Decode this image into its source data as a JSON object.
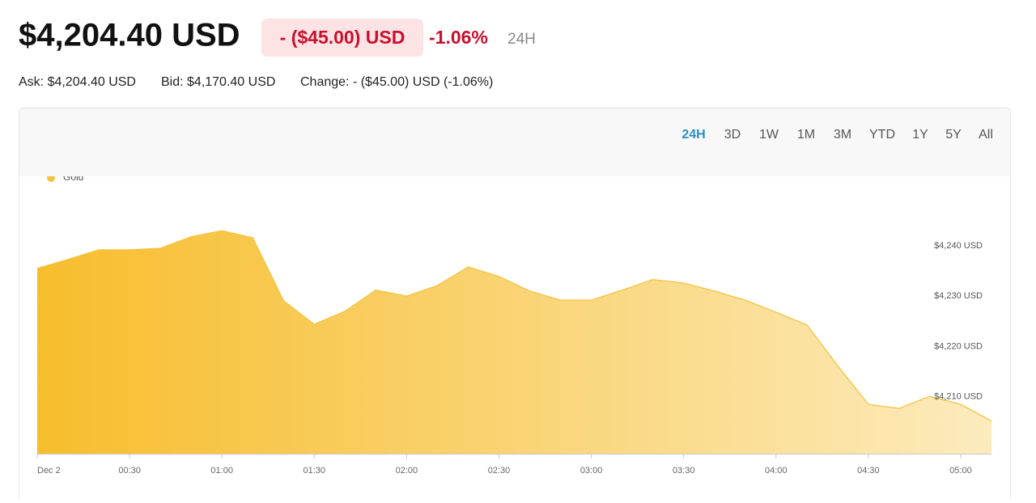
{
  "header": {
    "price": "$4,204.40 USD",
    "change": "- ($45.00) USD",
    "change_percent": "-1.06%",
    "period": "24H"
  },
  "quote": {
    "ask": "Ask: $4,204.40 USD",
    "bid": "Bid: $4,170.40 USD",
    "change": "Change: - ($45.00) USD (-1.06%)"
  },
  "tabs": [
    "24H",
    "3D",
    "1W",
    "1M",
    "3M",
    "YTD",
    "1Y",
    "5Y",
    "All"
  ],
  "chart_data": {
    "type": "area",
    "x": [
      0,
      10,
      20,
      30,
      40,
      50,
      60,
      70,
      80,
      90,
      100,
      110,
      120,
      130,
      140,
      150,
      160,
      170,
      180,
      190,
      200,
      210,
      220,
      230,
      240,
      250,
      260,
      270,
      280,
      290,
      300,
      310
    ],
    "series": [
      {
        "name": "Gold",
        "color": "#f5c342",
        "values": [
          4235.5,
          4237.3,
          4239.2,
          4239.2,
          4239.5,
          4241.8,
          4243.0,
          4241.6,
          4229.1,
          4224.4,
          4227.0,
          4231.2,
          4230.0,
          4232.1,
          4235.8,
          4233.9,
          4231.0,
          4229.2,
          4229.2,
          4231.2,
          4233.3,
          4232.6,
          4231.0,
          4229.2,
          4226.8,
          4224.3,
          4216.2,
          4208.5,
          4207.7,
          4210.1,
          4208.5,
          4205.2
        ]
      }
    ],
    "xlim": [
      0,
      310
    ],
    "xticks": [
      {
        "value": 0,
        "label": "Dec 2"
      },
      {
        "value": 30,
        "label": "00:30"
      },
      {
        "value": 60,
        "label": "01:00"
      },
      {
        "value": 90,
        "label": "01:30"
      },
      {
        "value": 120,
        "label": "02:00"
      },
      {
        "value": 150,
        "label": "02:30"
      },
      {
        "value": 180,
        "label": "03:00"
      },
      {
        "value": 210,
        "label": "03:30"
      },
      {
        "value": 240,
        "label": "04:00"
      },
      {
        "value": 270,
        "label": "04:30"
      },
      {
        "value": 300,
        "label": "05:00"
      }
    ],
    "ylim": [
      4198.7,
      4253.8
    ],
    "yticks": [
      {
        "value": 4210,
        "label": "$4,210 USD"
      },
      {
        "value": 4220,
        "label": "$4,220 USD"
      },
      {
        "value": 4230,
        "label": "$4,230 USD"
      },
      {
        "value": 4240,
        "label": "$4,240 USD"
      }
    ]
  }
}
